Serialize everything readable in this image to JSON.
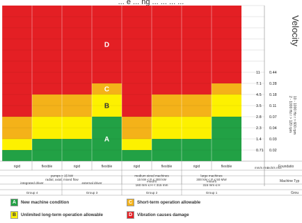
{
  "caption": "... e ... ng ... ... ... ...",
  "chart_data": {
    "type": "heatmap",
    "title": "Velocity",
    "colors": {
      "A": "#22a145",
      "B": "#fdf100",
      "C": "#f4b219",
      "D": "#e41f24"
    },
    "zone_letters": [
      "A",
      "B",
      "C",
      "D"
    ],
    "mm_labels": [
      "11",
      "7.1",
      "4.5",
      "3.5",
      "2.8",
      "2.3",
      "1.4",
      "0.71"
    ],
    "inch_labels": [
      "0.44",
      "0.28",
      "0.18",
      "0.11",
      "0.07",
      "0.04",
      "0.03",
      "0.02"
    ],
    "unit_mm": "mm/s rms",
    "unit_inch": "inch/s rms",
    "freq_text": [
      "10 - 1000 Hz r > 600 rpm",
      "2 - 1000 Hz r > 120 rpm"
    ],
    "columns": [
      {
        "foundation": "rigid",
        "zone_upper_index": [
          7,
          6,
          4,
          0
        ]
      },
      {
        "foundation": "flexible",
        "zone_upper_index": [
          6,
          4,
          2,
          0
        ]
      },
      {
        "foundation": "rigid",
        "zone_upper_index": [
          6,
          4,
          2,
          0
        ]
      },
      {
        "foundation": "flexible",
        "zone_upper_index": [
          4,
          2,
          1,
          0
        ]
      },
      {
        "foundation": "rigid",
        "zone_upper_index": [
          7,
          6,
          4,
          0
        ]
      },
      {
        "foundation": "flexible",
        "zone_upper_index": [
          6,
          4,
          2,
          0
        ]
      },
      {
        "foundation": "rigid",
        "zone_upper_index": [
          6,
          4,
          2,
          0
        ]
      },
      {
        "foundation": "flexible",
        "zone_upper_index": [
          4,
          2,
          1,
          0
        ]
      }
    ],
    "foundation_label": "Foundatio",
    "machine_type_label": "Machine Typ",
    "group_label": "Grou",
    "machine_rows": [
      {
        "text": [
          "pumps > 15 kW",
          "radial, axial, mixed flow"
        ],
        "span": [
          0,
          4
        ]
      },
      {
        "text": [
          "medium sized machines",
          "15 kW < P ≤ 300 kW"
        ],
        "span": [
          4,
          6
        ]
      },
      {
        "text": [
          "large machines",
          "300 kW < P ≤ 50 MW"
        ],
        "span": [
          6,
          8
        ]
      }
    ],
    "driver_rows": [
      {
        "text": [
          "integrated driver"
        ],
        "span": [
          0,
          2
        ]
      },
      {
        "text": [
          "external driver"
        ],
        "span": [
          2,
          4
        ]
      },
      {
        "text": [
          "motors",
          "160 mm ≤ H < 315 mm"
        ],
        "span": [
          4,
          6
        ]
      },
      {
        "text": [
          "motors",
          "315 mm ≤ H"
        ],
        "span": [
          6,
          8
        ]
      }
    ],
    "group_rows": [
      {
        "text": "Group 4",
        "span": [
          0,
          2
        ]
      },
      {
        "text": "Group 3",
        "span": [
          2,
          4
        ]
      },
      {
        "text": "Group 2",
        "span": [
          4,
          6
        ]
      },
      {
        "text": "Group 1",
        "span": [
          6,
          8
        ]
      }
    ]
  },
  "legend": [
    {
      "letter": "A",
      "color": "#22a145",
      "label": "New machine condition"
    },
    {
      "letter": "C",
      "color": "#f4b219",
      "label": "Short-term operation allowable"
    },
    {
      "letter": "B",
      "color": "#fdf100",
      "label": "Unlimited long-term operation allowable"
    },
    {
      "letter": "D",
      "color": "#e41f24",
      "label": "Vibration causes damage"
    }
  ]
}
